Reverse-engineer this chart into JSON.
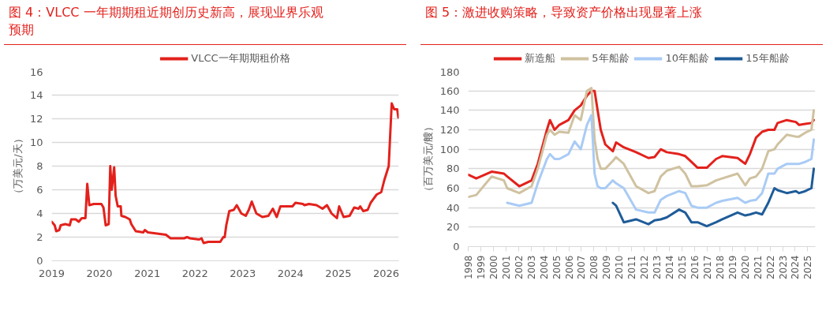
{
  "chart_data": [
    {
      "type": "line",
      "title": "图 4：VLCC 一年期期租近期创历史新高，展现业界乐观预期",
      "ylabel": "（万美元/天）",
      "legend": "top",
      "grid": "y",
      "ylim": [
        0,
        16
      ],
      "yticks": [
        0,
        2,
        4,
        6,
        8,
        10,
        12,
        14,
        16
      ],
      "xlim": [
        "2019-01-01",
        "2026-04-08"
      ],
      "xticks": [
        "2019",
        "2020",
        "2021",
        "2022",
        "2023",
        "2024",
        "2025",
        "2026"
      ],
      "x": [
        "2019-01-01",
        "2019-01-24",
        "2019-02-05",
        "2019-02-28",
        "2019-03-11",
        "2019-04-15",
        "2019-05-19",
        "2019-05-31",
        "2019-07-04",
        "2019-07-27",
        "2019-08-19",
        "2019-09-16",
        "2019-09-30",
        "2019-10-16",
        "2019-11-19",
        "2020-01-16",
        "2020-02-01",
        "2020-02-18",
        "2020-03-12",
        "2020-03-24",
        "2020-04-04",
        "2020-04-23",
        "2020-05-04",
        "2020-05-20",
        "2020-06-12",
        "2020-06-17",
        "2020-07-17",
        "2020-08-20",
        "2020-09-01",
        "2020-10-05",
        "2020-12-02",
        "2020-12-13",
        "2021-01-06",
        "2021-03-16",
        "2021-05-24",
        "2021-06-28",
        "2021-10-09",
        "2021-11-01",
        "2021-11-24",
        "2022-02-01",
        "2022-02-20",
        "2022-03-08",
        "2022-04-12",
        "2022-07-13",
        "2022-08-05",
        "2022-08-16",
        "2022-08-28",
        "2022-09-20",
        "2022-10-24",
        "2022-11-16",
        "2022-12-21",
        "2023-01-24",
        "2023-02-16",
        "2023-03-11",
        "2023-04-15",
        "2023-05-31",
        "2023-07-16",
        "2023-08-19",
        "2023-09-18",
        "2023-10-16",
        "2024-01-16",
        "2024-02-08",
        "2024-04-05",
        "2024-04-17",
        "2024-05-21",
        "2024-07-18",
        "2024-09-02",
        "2024-10-06",
        "2024-11-10",
        "2024-12-21",
        "2025-01-07",
        "2025-02-10",
        "2025-03-28",
        "2025-05-02",
        "2025-06-05",
        "2025-06-17",
        "2025-07-10",
        "2025-08-13",
        "2025-09-05",
        "2025-10-21",
        "2025-11-25",
        "2025-12-18",
        "2026-01-21",
        "2026-02-13",
        "2026-03-04",
        "2026-03-27",
        "2026-04-05"
      ],
      "series": [
        {
          "name": "VLCC一年期期租价格",
          "color": "#e3211c",
          "values": [
            3.3,
            3.0,
            2.5,
            2.6,
            3.0,
            3.1,
            3.0,
            3.5,
            3.5,
            3.3,
            3.6,
            3.6,
            6.5,
            4.7,
            4.8,
            4.8,
            4.5,
            3.0,
            3.1,
            8.0,
            6.0,
            7.9,
            5.5,
            4.6,
            4.6,
            3.8,
            3.7,
            3.5,
            3.1,
            2.5,
            2.4,
            2.6,
            2.4,
            2.3,
            2.2,
            1.9,
            1.9,
            2.0,
            1.9,
            1.8,
            1.9,
            1.5,
            1.6,
            1.6,
            2.0,
            2.0,
            3.0,
            4.2,
            4.3,
            4.7,
            4.0,
            3.8,
            4.3,
            5.0,
            4.0,
            3.7,
            3.8,
            4.4,
            3.7,
            4.6,
            4.6,
            4.9,
            4.8,
            4.7,
            4.8,
            4.7,
            4.4,
            4.7,
            4.0,
            3.6,
            4.6,
            3.7,
            3.8,
            4.5,
            4.4,
            4.6,
            4.2,
            4.3,
            4.9,
            5.6,
            5.8,
            6.8,
            8.0,
            13.3,
            12.8,
            12.8,
            12.1
          ]
        }
      ]
    },
    {
      "type": "line",
      "title": "图 5：激进收购策略，导致资产价格出现显著上涨",
      "ylabel": "（百万美元/艘）",
      "legend": "top",
      "grid": "y",
      "ylim": [
        0,
        180
      ],
      "yticks": [
        0,
        20,
        40,
        60,
        80,
        100,
        120,
        140,
        160,
        180
      ],
      "xlim": [
        1998,
        2025.6
      ],
      "xticks": [
        1998,
        1999,
        2000,
        2001,
        2002,
        2003,
        2004,
        2005,
        2006,
        2007,
        2008,
        2009,
        2010,
        2011,
        2012,
        2013,
        2014,
        2015,
        2016,
        2017,
        2018,
        2019,
        2020,
        2021,
        2022,
        2023,
        2024,
        2025
      ],
      "x": [
        1998.0,
        1998.64,
        1999.86,
        2000.84,
        2001.1,
        2002.06,
        2003.04,
        2003.53,
        2004.26,
        2004.5,
        2004.87,
        2005.24,
        2005.97,
        2006.46,
        2006.95,
        2007.44,
        2007.8,
        2008.05,
        2008.29,
        2008.54,
        2008.9,
        2009.5,
        2009.76,
        2010.37,
        2011.35,
        2012.33,
        2012.82,
        2013.31,
        2013.79,
        2014.77,
        2015.26,
        2015.75,
        2016.24,
        2016.97,
        2017.71,
        2018.2,
        2019.42,
        2020.03,
        2020.4,
        2020.89,
        2021.37,
        2021.86,
        2022.35,
        2022.6,
        2023.33,
        2024.06,
        2024.31,
        2024.8,
        2025.29,
        2025.48
      ],
      "series": [
        {
          "name": "新造船",
          "color": "#e3211c",
          "values": [
            74,
            70,
            77,
            75,
            72,
            62,
            68,
            85,
            120,
            130,
            120,
            125,
            130,
            140,
            145,
            155,
            160,
            160,
            140,
            120,
            105,
            98,
            107,
            102,
            97,
            91,
            92,
            100,
            97,
            95,
            93,
            87,
            81,
            81,
            90,
            93,
            91,
            85,
            95,
            112,
            118,
            120,
            120,
            127,
            130,
            128,
            125,
            126,
            127,
            130
          ]
        },
        {
          "name": "5年船龄",
          "color": "#d0c2a0",
          "values": [
            51,
            53,
            72,
            68,
            60,
            55,
            62,
            80,
            115,
            120,
            115,
            118,
            117,
            135,
            130,
            160,
            163,
            110,
            90,
            80,
            80,
            88,
            92,
            85,
            62,
            55,
            57,
            72,
            78,
            82,
            75,
            62,
            62,
            63,
            68,
            70,
            75,
            63,
            70,
            72,
            80,
            98,
            100,
            105,
            115,
            113,
            113,
            117,
            120,
            140
          ]
        },
        {
          "name": "10年船龄",
          "color": "#a9cbf5",
          "values": [
            null,
            null,
            null,
            null,
            45,
            42,
            45,
            65,
            90,
            95,
            90,
            90,
            95,
            108,
            100,
            125,
            135,
            75,
            62,
            60,
            60,
            68,
            65,
            60,
            38,
            35,
            35,
            48,
            52,
            57,
            55,
            42,
            40,
            40,
            45,
            47,
            50,
            45,
            47,
            48,
            55,
            75,
            75,
            80,
            85,
            85,
            85,
            87,
            90,
            110
          ]
        },
        {
          "name": "15年船龄",
          "color": "#1f5c99",
          "values": [
            null,
            null,
            null,
            null,
            null,
            null,
            null,
            null,
            null,
            null,
            null,
            null,
            null,
            null,
            null,
            null,
            null,
            null,
            null,
            null,
            null,
            45,
            42,
            25,
            28,
            23,
            27,
            28,
            30,
            38,
            35,
            25,
            25,
            21,
            25,
            28,
            35,
            32,
            33,
            35,
            33,
            45,
            60,
            58,
            55,
            57,
            55,
            57,
            60,
            80
          ]
        }
      ]
    }
  ]
}
